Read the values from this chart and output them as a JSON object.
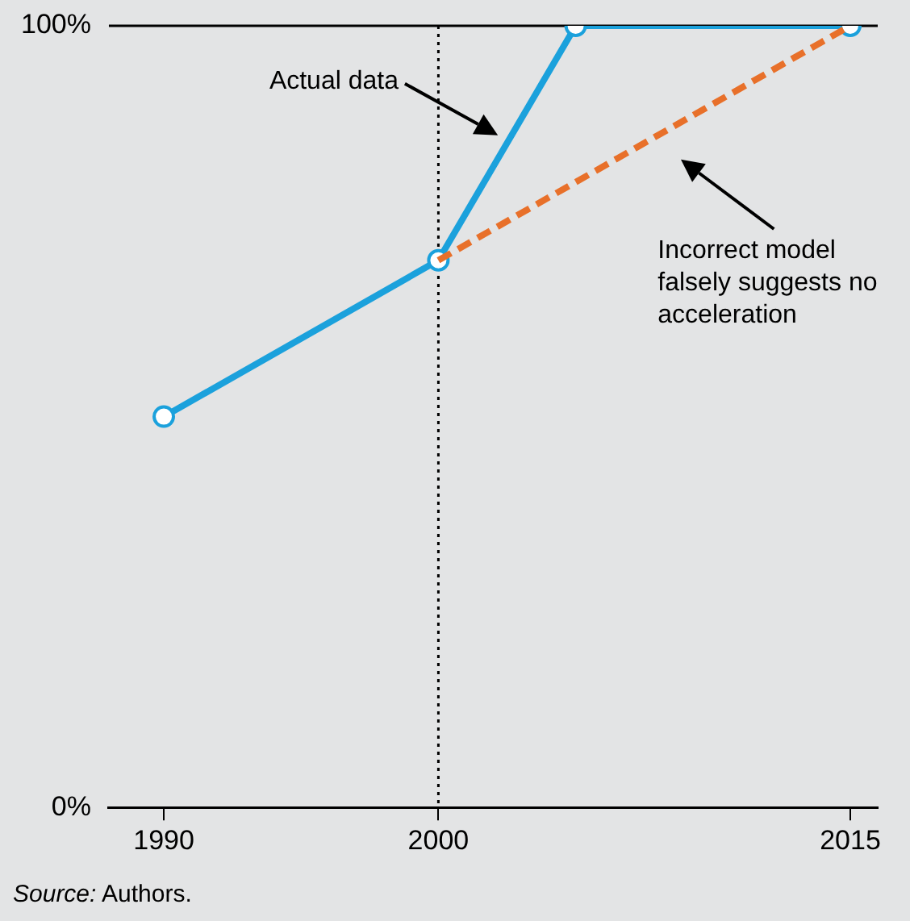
{
  "chart_data": {
    "type": "line",
    "series": [
      {
        "color": "#1ba1dc",
        "x": [
          1990,
          2000,
          2005,
          2015
        ],
        "values": [
          50,
          70,
          100,
          100
        ]
      },
      {
        "color": "#e8702a",
        "x": [
          2000,
          2015
        ],
        "values": [
          70,
          100
        ],
        "line_style": "dashed",
        "marker": "none"
      }
    ],
    "marker": "circle",
    "xlim": [
      1988,
      2016
    ],
    "xticks": [
      1990,
      2000,
      2015
    ],
    "ylim": [
      0,
      100
    ],
    "yticks": [
      {
        "value": 0,
        "label": "0%"
      },
      {
        "value": 100,
        "label": "100%"
      }
    ],
    "legend": false,
    "ref_lines": [
      {
        "axis": "x",
        "value": 2000,
        "line_style": "dotted",
        "color": "#000000"
      },
      {
        "axis": "y",
        "value": 100,
        "line_style": "solid",
        "color": "#000000"
      }
    ],
    "annotations": [
      "Actual data",
      "Incorrect model falsely suggests no acceleration",
      "Source: Authors."
    ]
  }
}
